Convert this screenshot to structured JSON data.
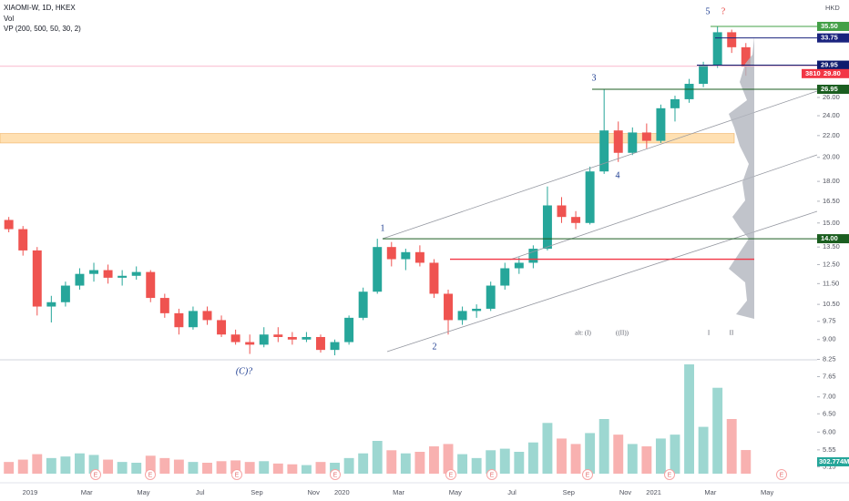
{
  "chart_data": {
    "type": "candlestick",
    "title": "XIAOMI-W, 1D, HKEX",
    "indicators": [
      "Vol",
      "VP (200, 500, 50, 30, 2)"
    ],
    "currency": "HKD",
    "log_scale": true,
    "colors": {
      "up": "#26a69a",
      "down": "#ef5350"
    },
    "categories": [
      null,
      null,
      "2019",
      null,
      null,
      null,
      "Mar",
      null,
      null,
      null,
      "May",
      null,
      null,
      null,
      "Jul",
      null,
      null,
      null,
      "Sep",
      null,
      null,
      null,
      "Nov",
      null,
      "2020",
      null,
      null,
      null,
      "Mar",
      null,
      null,
      null,
      "May",
      null,
      null,
      null,
      "Jul",
      null,
      null,
      null,
      "Sep",
      null,
      null,
      null,
      "Nov",
      null,
      "2021",
      null,
      null,
      null,
      "Mar",
      null,
      null,
      null,
      "May",
      null,
      null,
      null,
      null
    ],
    "open": [
      15.2,
      14.6,
      13.3,
      10.4,
      10.6,
      11.4,
      12.0,
      12.2,
      11.8,
      11.9,
      12.1,
      10.8,
      10.1,
      9.5,
      10.2,
      9.8,
      9.2,
      8.9,
      8.8,
      9.2,
      9.1,
      9.0,
      9.1,
      8.6,
      8.9,
      9.9,
      11.1,
      13.5,
      12.8,
      13.2,
      12.6,
      11.0,
      9.8,
      10.2,
      10.3,
      11.4,
      12.3,
      12.6,
      13.4,
      16.2,
      15.4,
      15.0,
      18.8,
      22.5,
      20.4,
      22.3,
      21.5,
      24.8,
      25.8,
      27.6,
      30.0,
      34.6,
      32.4,
      null,
      null,
      null,
      null,
      null,
      null
    ],
    "high": [
      15.4,
      14.8,
      13.5,
      10.9,
      11.6,
      12.3,
      12.6,
      12.5,
      12.2,
      12.4,
      12.2,
      11.0,
      10.3,
      10.4,
      10.4,
      10.0,
      9.4,
      9.2,
      9.5,
      9.5,
      9.3,
      9.3,
      9.2,
      9.0,
      10.0,
      11.3,
      14.0,
      13.8,
      13.4,
      13.6,
      12.8,
      11.2,
      10.4,
      10.5,
      11.6,
      12.6,
      12.9,
      13.6,
      17.6,
      16.8,
      15.8,
      19.2,
      27.0,
      23.4,
      22.8,
      23.2,
      25.2,
      26.2,
      28.2,
      30.4,
      35.5,
      35.0,
      33.0,
      null,
      null,
      null,
      null,
      null,
      null
    ],
    "low": [
      14.4,
      13.0,
      10.0,
      9.7,
      10.4,
      11.2,
      11.6,
      11.5,
      11.4,
      11.7,
      10.6,
      9.9,
      9.2,
      9.4,
      9.6,
      9.1,
      8.8,
      8.45,
      8.7,
      8.9,
      8.8,
      8.9,
      8.5,
      8.4,
      8.8,
      9.8,
      11.0,
      12.4,
      12.2,
      12.4,
      10.8,
      9.2,
      9.6,
      9.9,
      10.2,
      11.2,
      12.0,
      12.3,
      13.3,
      15.0,
      14.6,
      14.9,
      18.6,
      19.6,
      20.2,
      20.8,
      21.3,
      23.4,
      25.4,
      27.2,
      29.6,
      31.6,
      28.6,
      null,
      null,
      null,
      null,
      null,
      null
    ],
    "close": [
      14.6,
      13.3,
      10.4,
      10.6,
      11.4,
      12.0,
      12.2,
      11.8,
      11.9,
      12.1,
      10.8,
      10.1,
      9.5,
      10.2,
      9.8,
      9.2,
      8.9,
      8.8,
      9.2,
      9.1,
      9.0,
      9.1,
      8.6,
      8.9,
      9.9,
      11.1,
      13.5,
      12.8,
      13.2,
      12.6,
      11.0,
      9.8,
      10.2,
      10.3,
      11.4,
      12.3,
      12.6,
      13.4,
      16.2,
      15.4,
      15.0,
      18.8,
      22.5,
      20.4,
      22.3,
      21.5,
      24.8,
      25.8,
      27.6,
      30.0,
      34.6,
      32.4,
      29.8,
      null,
      null,
      null,
      null,
      null,
      null
    ],
    "volume": {
      "values": [
        150,
        180,
        250,
        200,
        220,
        260,
        240,
        180,
        150,
        140,
        230,
        200,
        180,
        150,
        140,
        160,
        170,
        150,
        160,
        130,
        120,
        110,
        150,
        140,
        200,
        260,
        420,
        300,
        260,
        280,
        350,
        380,
        250,
        200,
        300,
        320,
        280,
        400,
        650,
        450,
        380,
        520,
        700,
        500,
        380,
        350,
        450,
        500,
        1400,
        600,
        1100,
        700,
        302.774,
        null,
        null,
        null,
        null,
        null,
        null
      ],
      "last_label": "302.774M"
    },
    "ylim": [
      5.0,
      38.6
    ],
    "yticks": [
      {
        "value": 5.15,
        "label": "5.15"
      },
      {
        "value": 5.55,
        "label": "5.55"
      },
      {
        "value": 6,
        "label": "6.00"
      },
      {
        "value": 6.5,
        "label": "6.50"
      },
      {
        "value": 7,
        "label": "7.00"
      },
      {
        "value": 7.65,
        "label": "7.65"
      },
      {
        "value": 8.25,
        "label": "8.25"
      },
      {
        "value": 9,
        "label": "9.00"
      },
      {
        "value": 9.75,
        "label": "9.75"
      },
      {
        "value": 10.5,
        "label": "10.50"
      },
      {
        "value": 11.5,
        "label": "11.50"
      },
      {
        "value": 12.5,
        "label": "12.50"
      },
      {
        "value": 13.5,
        "label": "13.50"
      },
      {
        "value": 15,
        "label": "15.00"
      },
      {
        "value": 16.5,
        "label": "16.50"
      },
      {
        "value": 18,
        "label": "18.00"
      },
      {
        "value": 20,
        "label": "20.00"
      },
      {
        "value": 22,
        "label": "22.00"
      },
      {
        "value": 24,
        "label": "24.00"
      },
      {
        "value": 26,
        "label": "26.00"
      }
    ],
    "levels": [
      {
        "value": 35.5,
        "label": "35.50",
        "color": "#43a047"
      },
      {
        "value": 33.75,
        "label": "33.75",
        "color": "#1a237e"
      },
      {
        "value": 29.95,
        "label": "29.95",
        "color": "#0d1b6e"
      },
      {
        "value": 26.95,
        "label": "26.95",
        "color": "#1b5e20"
      },
      {
        "value": 14,
        "label": "14.00",
        "color": "#1b5e20"
      },
      {
        "value": 12.8,
        "color": "#f23645"
      }
    ],
    "last_price": {
      "value": 29.8,
      "label": "29.80",
      "countdown": "3810",
      "color": "#f23645"
    },
    "zone": {
      "low": 21.3,
      "high": 22.2,
      "color": "#ffe0b2"
    },
    "annotations": [
      "1",
      "2",
      "3",
      "4",
      "5",
      "?",
      "(C)?",
      "alt: (I)",
      "((II))",
      "I",
      "II"
    ],
    "earnings_label": "E"
  }
}
